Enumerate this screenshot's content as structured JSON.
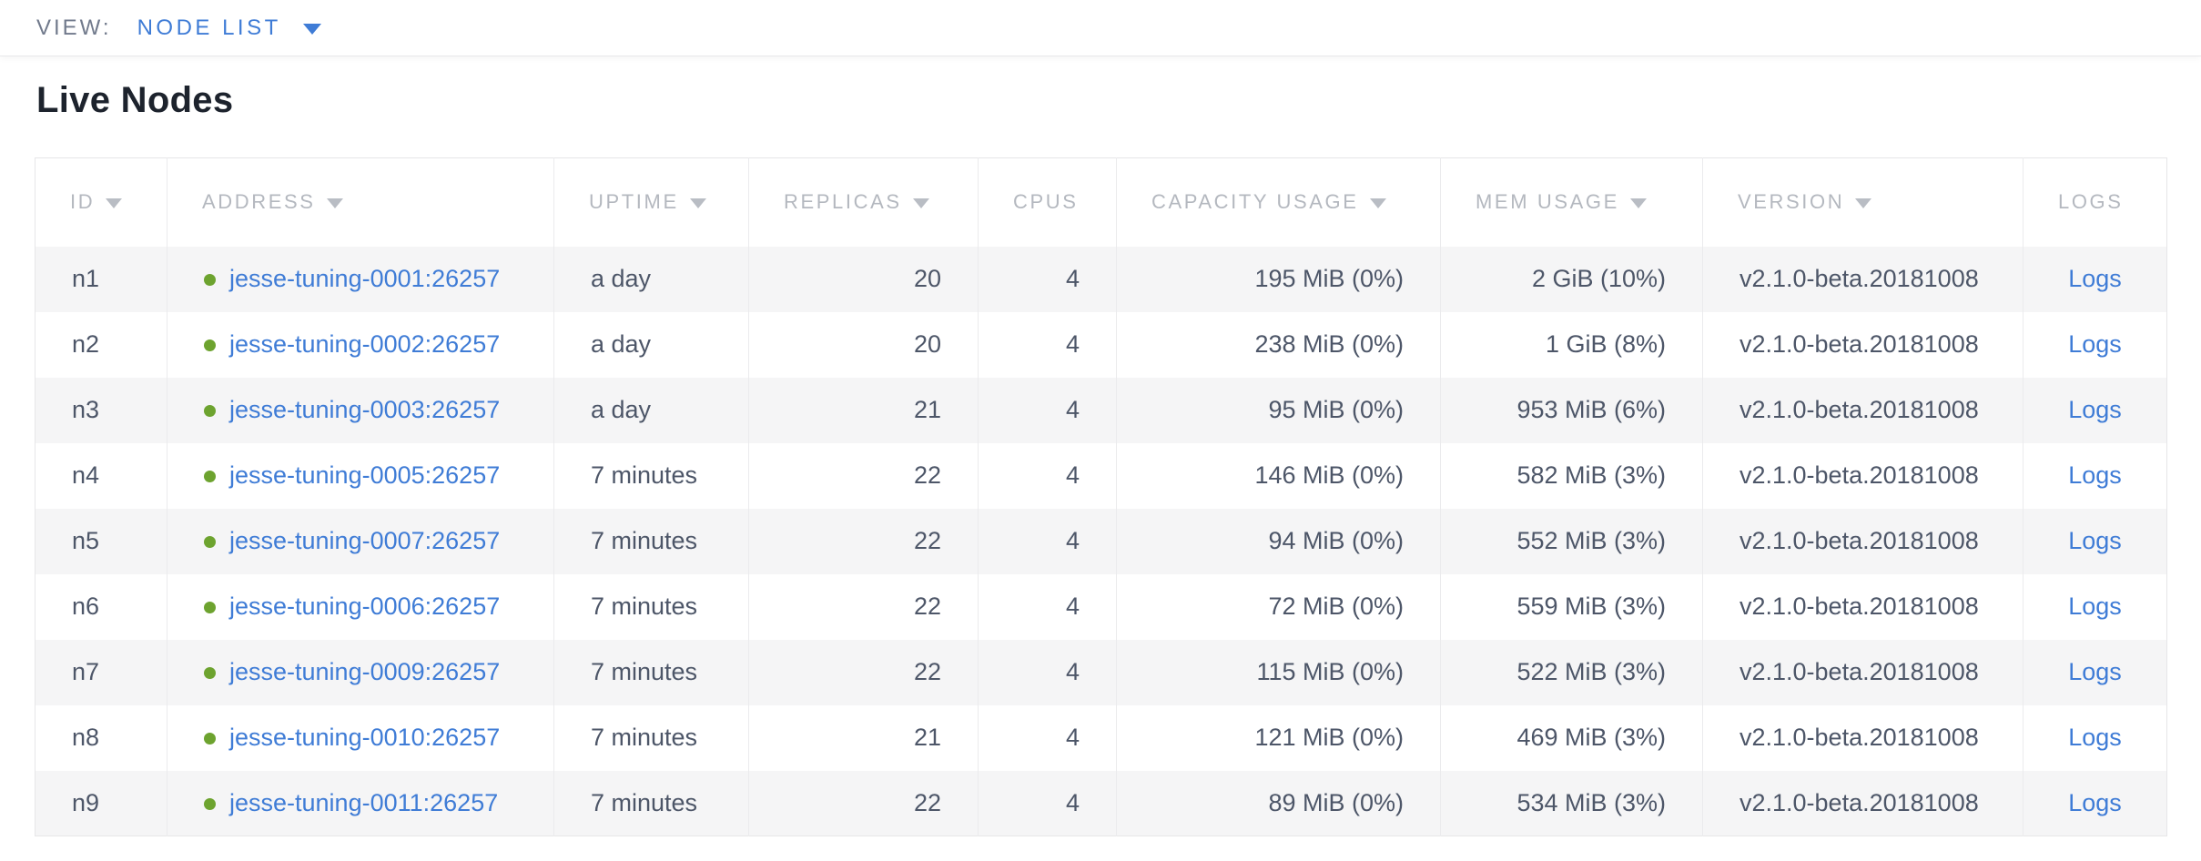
{
  "view_bar": {
    "label": "VIEW:",
    "selected": "NODE LIST"
  },
  "page": {
    "title": "Live Nodes"
  },
  "colors": {
    "link_blue": "#3f7cd6",
    "healthy_green": "#6da32f",
    "header_gray": "#b4b8bf",
    "cell_text": "#4d5668",
    "row_stripe": "#f5f5f6"
  },
  "table": {
    "columns": [
      {
        "key": "id",
        "label": "ID",
        "sortable": true,
        "align": "left"
      },
      {
        "key": "address",
        "label": "ADDRESS",
        "sortable": true,
        "align": "left"
      },
      {
        "key": "uptime",
        "label": "UPTIME",
        "sortable": true,
        "align": "left"
      },
      {
        "key": "replicas",
        "label": "REPLICAS",
        "sortable": true,
        "align": "right"
      },
      {
        "key": "cpus",
        "label": "CPUS",
        "sortable": false,
        "align": "right"
      },
      {
        "key": "capacity_usage",
        "label": "CAPACITY USAGE",
        "sortable": true,
        "align": "right"
      },
      {
        "key": "mem_usage",
        "label": "MEM USAGE",
        "sortable": true,
        "align": "right"
      },
      {
        "key": "version",
        "label": "VERSION",
        "sortable": true,
        "align": "left"
      },
      {
        "key": "logs",
        "label": "LOGS",
        "sortable": false,
        "align": "center"
      }
    ],
    "rows": [
      {
        "id": "n1",
        "address": "jesse-tuning-0001:26257",
        "uptime": "a day",
        "replicas": "20",
        "cpus": "4",
        "capacity_usage": "195 MiB (0%)",
        "mem_usage": "2 GiB (10%)",
        "version": "v2.1.0-beta.20181008",
        "logs": "Logs",
        "status": "healthy"
      },
      {
        "id": "n2",
        "address": "jesse-tuning-0002:26257",
        "uptime": "a day",
        "replicas": "20",
        "cpus": "4",
        "capacity_usage": "238 MiB (0%)",
        "mem_usage": "1 GiB (8%)",
        "version": "v2.1.0-beta.20181008",
        "logs": "Logs",
        "status": "healthy"
      },
      {
        "id": "n3",
        "address": "jesse-tuning-0003:26257",
        "uptime": "a day",
        "replicas": "21",
        "cpus": "4",
        "capacity_usage": "95 MiB (0%)",
        "mem_usage": "953 MiB (6%)",
        "version": "v2.1.0-beta.20181008",
        "logs": "Logs",
        "status": "healthy"
      },
      {
        "id": "n4",
        "address": "jesse-tuning-0005:26257",
        "uptime": "7 minutes",
        "replicas": "22",
        "cpus": "4",
        "capacity_usage": "146 MiB (0%)",
        "mem_usage": "582 MiB (3%)",
        "version": "v2.1.0-beta.20181008",
        "logs": "Logs",
        "status": "healthy"
      },
      {
        "id": "n5",
        "address": "jesse-tuning-0007:26257",
        "uptime": "7 minutes",
        "replicas": "22",
        "cpus": "4",
        "capacity_usage": "94 MiB (0%)",
        "mem_usage": "552 MiB (3%)",
        "version": "v2.1.0-beta.20181008",
        "logs": "Logs",
        "status": "healthy"
      },
      {
        "id": "n6",
        "address": "jesse-tuning-0006:26257",
        "uptime": "7 minutes",
        "replicas": "22",
        "cpus": "4",
        "capacity_usage": "72 MiB (0%)",
        "mem_usage": "559 MiB (3%)",
        "version": "v2.1.0-beta.20181008",
        "logs": "Logs",
        "status": "healthy"
      },
      {
        "id": "n7",
        "address": "jesse-tuning-0009:26257",
        "uptime": "7 minutes",
        "replicas": "22",
        "cpus": "4",
        "capacity_usage": "115 MiB (0%)",
        "mem_usage": "522 MiB (3%)",
        "version": "v2.1.0-beta.20181008",
        "logs": "Logs",
        "status": "healthy"
      },
      {
        "id": "n8",
        "address": "jesse-tuning-0010:26257",
        "uptime": "7 minutes",
        "replicas": "21",
        "cpus": "4",
        "capacity_usage": "121 MiB (0%)",
        "mem_usage": "469 MiB (3%)",
        "version": "v2.1.0-beta.20181008",
        "logs": "Logs",
        "status": "healthy"
      },
      {
        "id": "n9",
        "address": "jesse-tuning-0011:26257",
        "uptime": "7 minutes",
        "replicas": "22",
        "cpus": "4",
        "capacity_usage": "89 MiB (0%)",
        "mem_usage": "534 MiB (3%)",
        "version": "v2.1.0-beta.20181008",
        "logs": "Logs",
        "status": "healthy"
      }
    ]
  }
}
